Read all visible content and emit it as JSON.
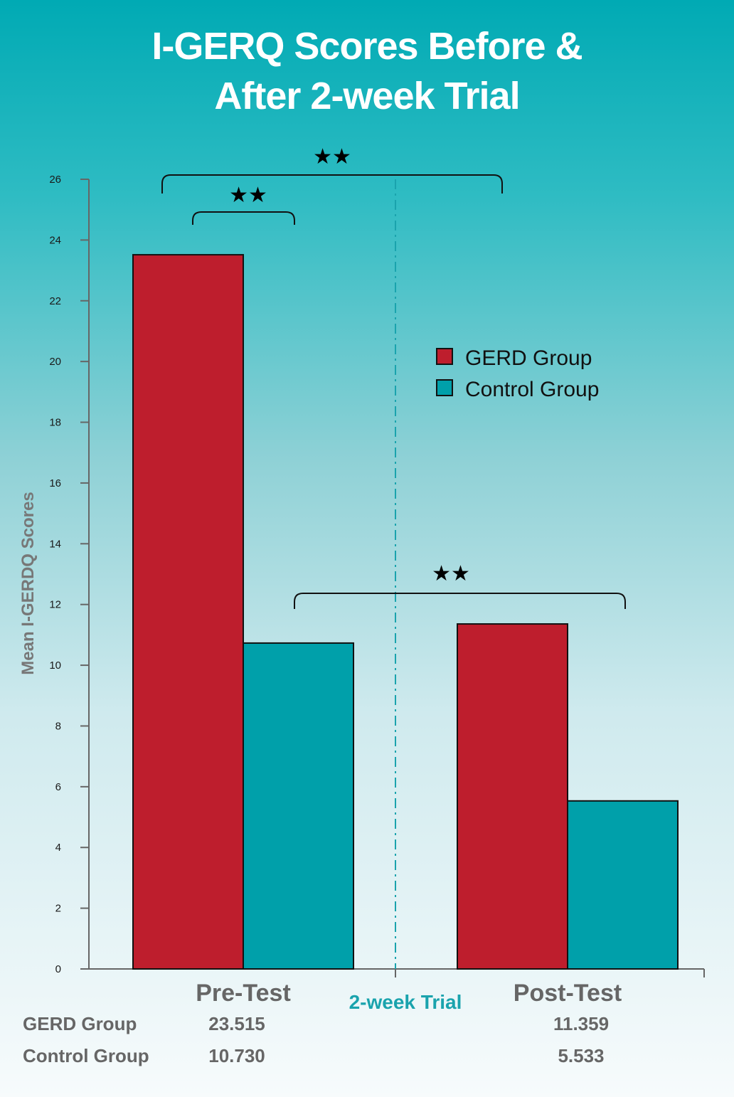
{
  "title_line1": "I-GERQ Scores Before &",
  "title_line2": "After 2-week Trial",
  "chart_data": {
    "type": "bar",
    "ylabel": "Mean I-GERDQ Scores",
    "ylim": [
      0,
      26
    ],
    "yticks": [
      0,
      2,
      4,
      6,
      8,
      10,
      12,
      14,
      16,
      18,
      20,
      22,
      24,
      26
    ],
    "categories": [
      "Pre-Test",
      "Post-Test"
    ],
    "series": [
      {
        "name": "GERD Group",
        "values": [
          23.515,
          11.359
        ],
        "color": "#be1e2d"
      },
      {
        "name": "Control Group",
        "values": [
          10.73,
          5.533
        ],
        "color": "#00a0aa"
      }
    ],
    "divider_label": "2-week Trial",
    "divider_color": "#1aa3ad",
    "legend_position": "right",
    "significance_marker": "★★",
    "table": {
      "rows": [
        {
          "label": "GERD Group",
          "values": [
            "23.515",
            "11.359"
          ]
        },
        {
          "label": "Control Group",
          "values": [
            "10.730",
            "5.533"
          ]
        }
      ]
    }
  }
}
